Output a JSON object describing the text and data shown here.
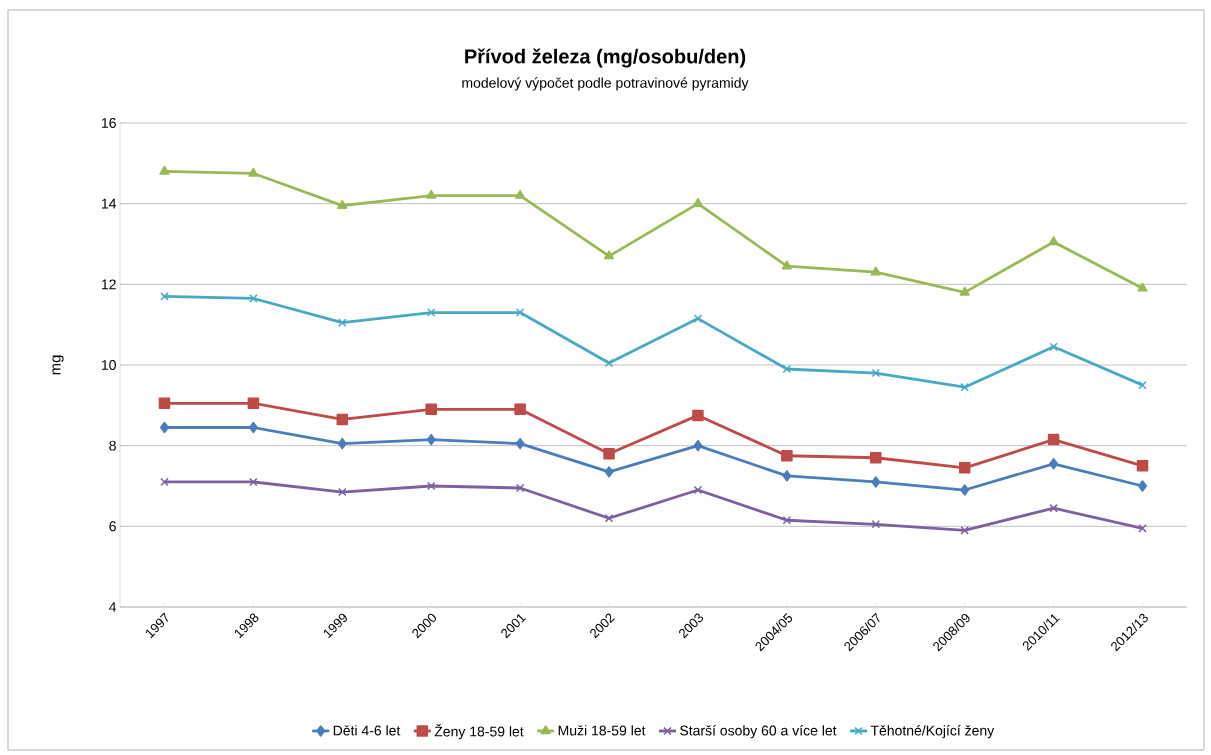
{
  "chart_data": {
    "type": "line",
    "title": "Přívod železa (mg/osobu/den)",
    "subtitle": "modelový výpočet podle potravinové pyramidy",
    "ylabel": "mg",
    "categories": [
      "1997",
      "1998",
      "1999",
      "2000",
      "2001",
      "2002",
      "2003",
      "2004/05",
      "2006/07",
      "2008/09",
      "2010/11",
      "2012/13"
    ],
    "series": [
      {
        "name": "Děti 4-6 let",
        "color": "#4a7ebb",
        "marker": "diamond",
        "values": [
          8.45,
          8.45,
          8.05,
          8.15,
          8.05,
          7.35,
          8.0,
          7.25,
          7.1,
          6.9,
          7.55,
          7.0
        ]
      },
      {
        "name": "Ženy 18-59 let",
        "color": "#be4b48",
        "marker": "square",
        "values": [
          9.05,
          9.05,
          8.65,
          8.9,
          8.9,
          7.8,
          8.75,
          7.75,
          7.7,
          7.45,
          8.15,
          7.5
        ]
      },
      {
        "name": "Muži 18-59 let",
        "color": "#98b954",
        "marker": "triangle",
        "values": [
          14.8,
          14.75,
          13.95,
          14.2,
          14.2,
          12.7,
          14.0,
          12.45,
          12.3,
          11.8,
          13.05,
          11.9
        ]
      },
      {
        "name": "Starší osoby 60 a více let",
        "color": "#7d60a0",
        "marker": "cross",
        "values": [
          7.1,
          7.1,
          6.85,
          7.0,
          6.95,
          6.2,
          6.9,
          6.15,
          6.05,
          5.9,
          6.45,
          5.95
        ]
      },
      {
        "name": "Těhotné/Kojící ženy",
        "color": "#46aac5",
        "marker": "cross",
        "values": [
          11.7,
          11.65,
          11.05,
          11.3,
          11.3,
          10.05,
          11.15,
          9.9,
          9.8,
          9.45,
          10.45,
          9.5
        ]
      }
    ],
    "ylim": [
      4,
      16
    ],
    "yticks": [
      4,
      6,
      8,
      10,
      12,
      14,
      16
    ],
    "grid": "y",
    "legend": "bottom",
    "line_style": "solid"
  }
}
